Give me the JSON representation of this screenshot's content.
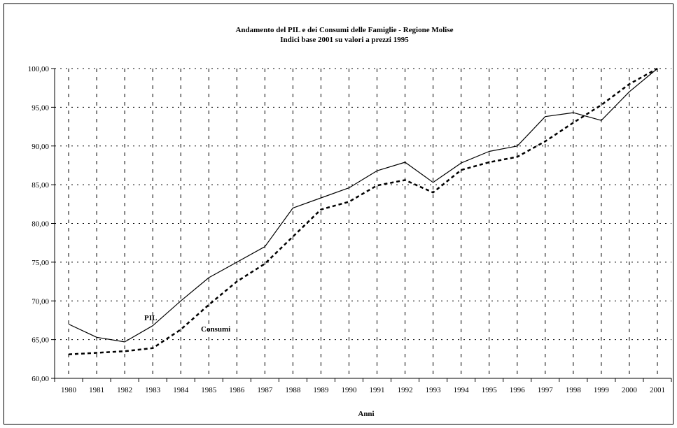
{
  "chart_data": {
    "type": "line",
    "title": "Andamento del PIL e dei Consumi delle Famiglie - Regione Molise",
    "subtitle": "Indici base 2001 su valori a prezzi 1995",
    "xlabel": "Anni",
    "ylabel": "",
    "categories": [
      "1980",
      "1981",
      "1982",
      "1983",
      "1984",
      "1985",
      "1986",
      "1987",
      "1988",
      "1989",
      "1990",
      "1991",
      "1992",
      "1993",
      "1994",
      "1995",
      "1996",
      "1997",
      "1998",
      "1999",
      "2000",
      "2001"
    ],
    "ylim": [
      60,
      100
    ],
    "yticks": [
      "60,00",
      "65,00",
      "70,00",
      "75,00",
      "80,00",
      "85,00",
      "90,00",
      "95,00",
      "100,00"
    ],
    "grid": true,
    "series": [
      {
        "name": "PIL",
        "style": "solid",
        "color": "#000000",
        "values": [
          67.0,
          65.3,
          64.7,
          66.8,
          70.0,
          73.0,
          75.0,
          77.0,
          82.0,
          83.3,
          84.6,
          86.8,
          87.9,
          85.3,
          87.8,
          89.3,
          90.0,
          93.8,
          94.3,
          93.3,
          97.0,
          100.0
        ]
      },
      {
        "name": "Consumi",
        "style": "dashed",
        "color": "#000000",
        "values": [
          63.1,
          63.3,
          63.5,
          63.9,
          66.3,
          69.5,
          72.5,
          74.8,
          78.3,
          81.8,
          82.8,
          84.9,
          85.6,
          84.0,
          86.9,
          87.9,
          88.6,
          90.6,
          93.0,
          95.3,
          98.0,
          100.0
        ]
      }
    ]
  }
}
